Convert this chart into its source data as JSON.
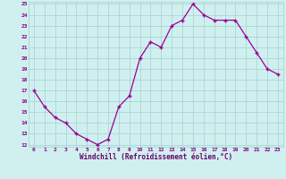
{
  "hours": [
    0,
    1,
    2,
    3,
    4,
    5,
    6,
    7,
    8,
    9,
    10,
    11,
    12,
    13,
    14,
    15,
    16,
    17,
    18,
    19,
    20,
    21,
    22,
    23
  ],
  "values": [
    17,
    15.5,
    14.5,
    14,
    13,
    12.5,
    12,
    12.5,
    15.5,
    16.5,
    20,
    21.5,
    21,
    23,
    23.5,
    25,
    24,
    23.5,
    23.5,
    23.5,
    22,
    20.5,
    19,
    18.5
  ],
  "line_color": "#990099",
  "marker_color": "#990099",
  "bg_color": "#d0f0f0",
  "grid_color": "#b0d8d8",
  "xlabel": "Windchill (Refroidissement éolien,°C)",
  "xlabel_color": "#660066",
  "tick_color": "#880088",
  "ylim": [
    12,
    25
  ],
  "xlim": [
    -0.5,
    23.5
  ],
  "yticks": [
    12,
    13,
    14,
    15,
    16,
    17,
    18,
    19,
    20,
    21,
    22,
    23,
    24,
    25
  ],
  "xticks": [
    0,
    1,
    2,
    3,
    4,
    5,
    6,
    7,
    8,
    9,
    10,
    11,
    12,
    13,
    14,
    15,
    16,
    17,
    18,
    19,
    20,
    21,
    22,
    23
  ]
}
